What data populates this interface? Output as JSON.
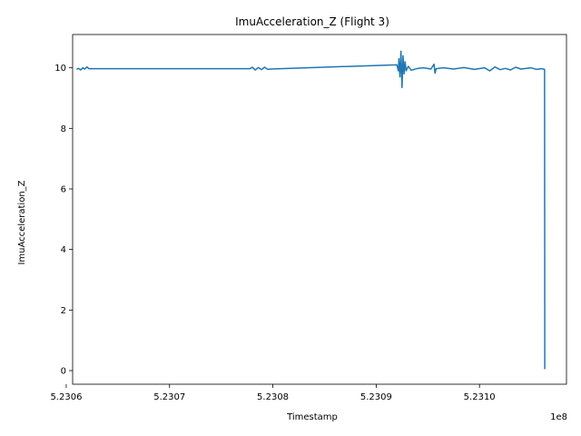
{
  "chart_data": {
    "type": "line",
    "title": "ImuAcceleration_Z (Flight 3)",
    "xlabel": "Timestamp",
    "ylabel": "ImuAcceleration_Z",
    "x_offset_label": "1e8",
    "xlim": [
      523060620,
      523108420
    ],
    "ylim": [
      -0.45,
      11.1
    ],
    "x_ticks": [
      523060000,
      523070000,
      523080000,
      523090000,
      523100000
    ],
    "x_tick_labels": [
      "5.2306",
      "5.2307",
      "5.2308",
      "5.2309",
      "5.2310"
    ],
    "y_ticks": [
      0,
      2,
      4,
      6,
      8,
      10
    ],
    "y_tick_labels": [
      "0",
      "2",
      "4",
      "6",
      "8",
      "10"
    ],
    "grid": false,
    "line_color": "#1f77b4",
    "series": [
      {
        "x": [
          523061000,
          523061200,
          523061400,
          523061600,
          523061800,
          523062000,
          523062200,
          523077800,
          523078000,
          523078300,
          523078600,
          523078900,
          523079200,
          523079500,
          523079800,
          523092000,
          523092150,
          523092200,
          523092300,
          523092400,
          523092500,
          523092600,
          523092700,
          523092800,
          523092900,
          523093100,
          523093400,
          523094000,
          523094600,
          523095300,
          523095600,
          523095700,
          523095800,
          523096500,
          523097500,
          523098500,
          523099500,
          523100500,
          523101000,
          523101500,
          523102000,
          523102500,
          523103000,
          523103500,
          523104000,
          523104500,
          523105000,
          523105500,
          523106000,
          523106300,
          523106310,
          523106320
        ],
        "y": [
          9.95,
          9.98,
          9.93,
          10.0,
          9.96,
          10.03,
          9.97,
          9.97,
          10.02,
          9.93,
          10.01,
          9.94,
          10.02,
          9.95,
          9.96,
          10.1,
          9.9,
          10.3,
          9.7,
          10.55,
          9.35,
          10.4,
          9.8,
          10.2,
          9.9,
          10.05,
          9.92,
          9.98,
          10.0,
          9.96,
          10.12,
          9.82,
          9.97,
          10.0,
          9.96,
          10.01,
          9.95,
          10.0,
          9.9,
          10.03,
          9.94,
          9.98,
          9.93,
          10.02,
          9.96,
          9.98,
          10.0,
          9.95,
          9.97,
          9.95,
          5.0,
          0.05
        ]
      }
    ]
  }
}
